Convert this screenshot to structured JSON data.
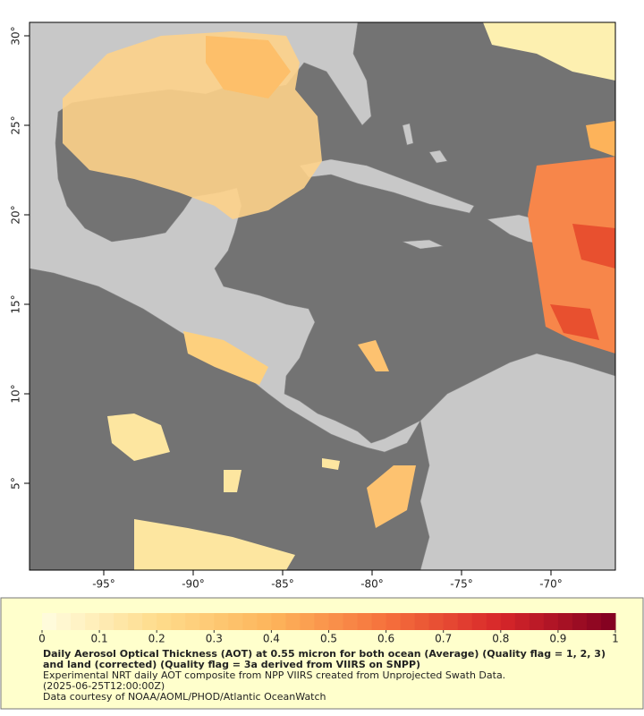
{
  "map": {
    "lon_range": [
      -99.15,
      -66.4
    ],
    "lat_range": [
      0.15,
      30.75
    ],
    "lon_ticks": [
      {
        "value": -95,
        "label": "-95°"
      },
      {
        "value": -90,
        "label": "-90°"
      },
      {
        "value": -85,
        "label": "-85°"
      },
      {
        "value": -80,
        "label": "-80°"
      },
      {
        "value": -75,
        "label": "-75°"
      },
      {
        "value": -70,
        "label": "-70°"
      }
    ],
    "lat_ticks": [
      {
        "value": 30,
        "label": "30°"
      },
      {
        "value": 25,
        "label": "25°"
      },
      {
        "value": 20,
        "label": "20°"
      },
      {
        "value": 15,
        "label": "15°"
      },
      {
        "value": 10,
        "label": "10°"
      },
      {
        "value": 5,
        "label": "5°"
      }
    ]
  },
  "colorbar": {
    "range": [
      0,
      1
    ],
    "ticks": [
      0,
      0.1,
      0.2,
      0.3,
      0.4,
      0.5,
      0.6,
      0.7,
      0.8,
      0.9,
      1
    ],
    "colors": [
      "#fffde0",
      "#fedc8c",
      "#fdb55b",
      "#f6713c",
      "#d7262a",
      "#800020"
    ]
  },
  "caption": {
    "title": "Daily Aerosol Optical Thickness (AOT) at 0.55 micron for both ocean (Average) (Quality flag = 1, 2, 3) and land (corrected) (Quality flag = 3a derived from VIIRS on SNPP)",
    "lines": [
      "Experimental NRT daily AOT composite from NPP VIIRS created from Unprojected Swath Data.",
      "(2025-06-25T12:00:00Z)",
      "Data courtesy of NOAA/AOML/PHOD/Atlantic OceanWatch"
    ]
  }
}
